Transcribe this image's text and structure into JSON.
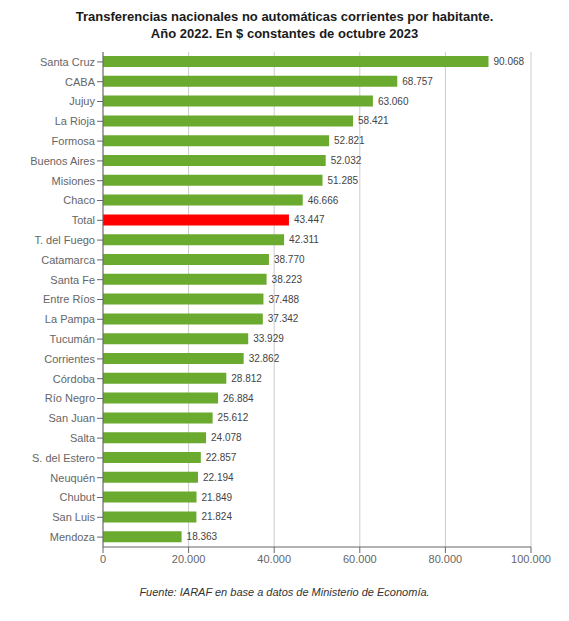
{
  "chart_data": {
    "type": "bar",
    "orientation": "horizontal",
    "title": "Transferencias nacionales no automáticas corrientes por habitante.",
    "subtitle": "Año 2022. En $ constantes de octubre 2023",
    "annotations": [
      "Fuente: IARAF en base a datos de Ministerio de Economía."
    ],
    "categories": [
      "Santa Cruz",
      "CABA",
      "Jujuy",
      "La Rioja",
      "Formosa",
      "Buenos Aires",
      "Misiones",
      "Chaco",
      "Total",
      "T. del Fuego",
      "Catamarca",
      "Santa Fe",
      "Entre Ríos",
      "La Pampa",
      "Tucumán",
      "Corrientes",
      "Córdoba",
      "Río Negro",
      "San Juan",
      "Salta",
      "S. del Estero",
      "Neuquén",
      "Chubut",
      "San Luis",
      "Mendoza"
    ],
    "values": [
      90068,
      68757,
      63060,
      58421,
      52821,
      52032,
      51285,
      46666,
      43447,
      42311,
      38770,
      38223,
      37488,
      37342,
      33929,
      32862,
      28812,
      26884,
      25612,
      24078,
      22857,
      22194,
      21849,
      21824,
      18363
    ],
    "value_labels": [
      "90.068",
      "68.757",
      "63.060",
      "58.421",
      "52.821",
      "52.032",
      "51.285",
      "46.666",
      "43.447",
      "42.311",
      "38.770",
      "38.223",
      "37.488",
      "37.342",
      "33.929",
      "32.862",
      "28.812",
      "26.884",
      "25.612",
      "24.078",
      "22.857",
      "22.194",
      "21.849",
      "21.824",
      "18.363"
    ],
    "data_labels": true,
    "colors": [
      "#6aaa2e",
      "#6aaa2e",
      "#6aaa2e",
      "#6aaa2e",
      "#6aaa2e",
      "#6aaa2e",
      "#6aaa2e",
      "#6aaa2e",
      "#ff0000",
      "#6aaa2e",
      "#6aaa2e",
      "#6aaa2e",
      "#6aaa2e",
      "#6aaa2e",
      "#6aaa2e",
      "#6aaa2e",
      "#6aaa2e",
      "#6aaa2e",
      "#6aaa2e",
      "#6aaa2e",
      "#6aaa2e",
      "#6aaa2e",
      "#6aaa2e",
      "#6aaa2e",
      "#6aaa2e"
    ],
    "xlim": [
      0,
      100000
    ],
    "xticks": [
      0,
      {
        "value": 20000,
        "label": "20.000"
      },
      {
        "value": 40000,
        "label": "40.000"
      },
      {
        "value": 60000,
        "label": "60.000"
      },
      {
        "value": 80000,
        "label": "80.000"
      },
      {
        "value": 100000,
        "label": "100.000"
      }
    ],
    "grid": true
  }
}
